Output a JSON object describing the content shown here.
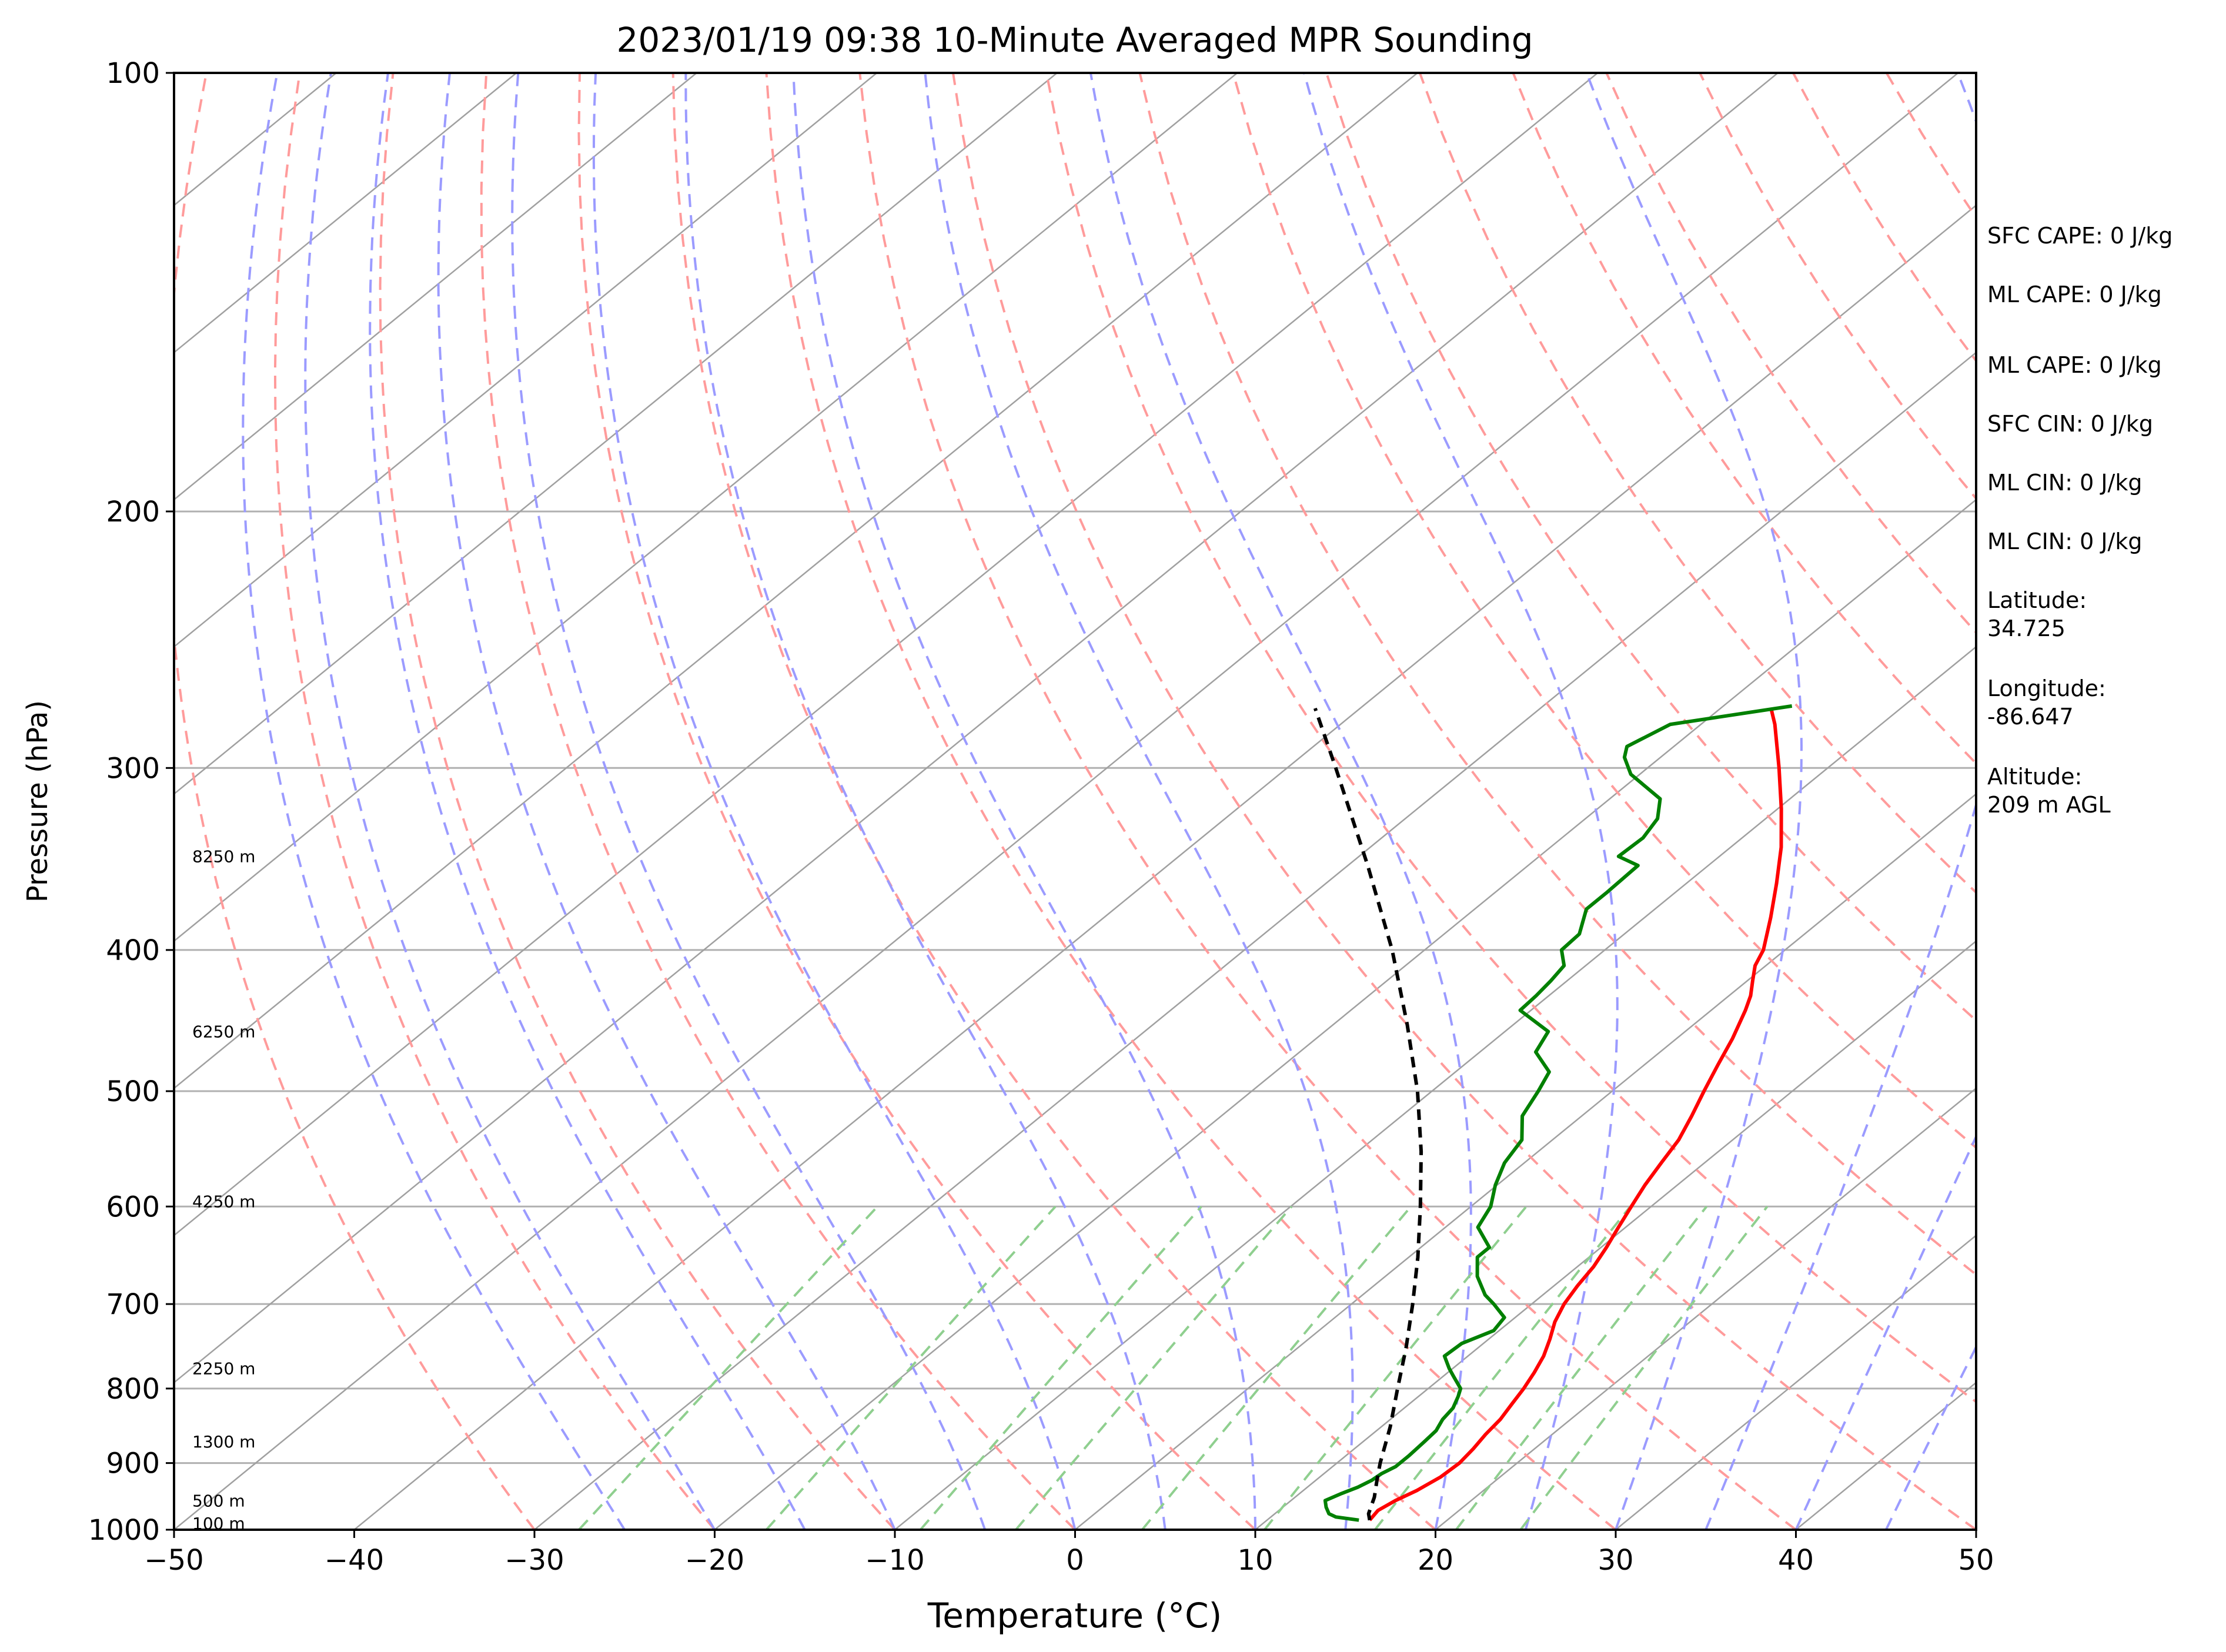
{
  "chart_data": {
    "type": "line",
    "title": "2023/01/19 09:38 10-Minute Averaged MPR Sounding",
    "xlabel": "Temperature (°C)",
    "ylabel": "Pressure (hPa)",
    "xlim": [
      -50,
      50
    ],
    "ylim": [
      1000,
      100
    ],
    "y_scale": "log",
    "skew": true,
    "grid": true,
    "xticks": [
      "−50",
      "−40",
      "−30",
      "−20",
      "−10",
      "0",
      "10",
      "20",
      "30",
      "40",
      "50"
    ],
    "yticks": [
      "100",
      "200",
      "300",
      "400",
      "500",
      "600",
      "700",
      "800",
      "900",
      "1000"
    ],
    "height_labels": [
      {
        "text": "100 m",
        "p": 990
      },
      {
        "text": "500 m",
        "p": 955
      },
      {
        "text": "1300 m",
        "p": 870
      },
      {
        "text": "2250 m",
        "p": 775
      },
      {
        "text": "4250 m",
        "p": 595
      },
      {
        "text": "6250 m",
        "p": 455
      },
      {
        "text": "8250 m",
        "p": 345
      }
    ],
    "series": [
      {
        "color": "#ff0000",
        "points": [
          [
            985,
            15.7
          ],
          [
            970,
            15.5
          ],
          [
            955,
            15.8
          ],
          [
            940,
            16.3
          ],
          [
            920,
            16.7
          ],
          [
            900,
            16.8
          ],
          [
            880,
            16.6
          ],
          [
            860,
            16.3
          ],
          [
            840,
            16.1
          ],
          [
            820,
            15.7
          ],
          [
            800,
            15.3
          ],
          [
            780,
            14.8
          ],
          [
            760,
            14.2
          ],
          [
            740,
            13.4
          ],
          [
            720,
            12.5
          ],
          [
            700,
            11.8
          ],
          [
            680,
            11.3
          ],
          [
            660,
            10.9
          ],
          [
            640,
            10.3
          ],
          [
            620,
            9.6
          ],
          [
            600,
            8.9
          ],
          [
            580,
            8.2
          ],
          [
            560,
            7.6
          ],
          [
            540,
            7.0
          ],
          [
            520,
            6.1
          ],
          [
            500,
            5.1
          ],
          [
            480,
            4.1
          ],
          [
            460,
            3.1
          ],
          [
            440,
            1.9
          ],
          [
            430,
            1.2
          ],
          [
            420,
            0.3
          ],
          [
            410,
            -0.6
          ],
          [
            400,
            -1.2
          ],
          [
            380,
            -3.0
          ],
          [
            360,
            -5.0
          ],
          [
            340,
            -7.2
          ],
          [
            320,
            -9.8
          ],
          [
            300,
            -12.7
          ],
          [
            280,
            -15.9
          ],
          [
            273,
            -17.2
          ]
        ]
      },
      {
        "color": "#008000",
        "points": [
          [
            985,
            15.1
          ],
          [
            980,
            13.6
          ],
          [
            975,
            13.0
          ],
          [
            965,
            12.4
          ],
          [
            955,
            11.9
          ],
          [
            945,
            12.3
          ],
          [
            935,
            12.8
          ],
          [
            925,
            13.1
          ],
          [
            915,
            13.2
          ],
          [
            905,
            13.5
          ],
          [
            890,
            13.5
          ],
          [
            870,
            13.4
          ],
          [
            855,
            13.3
          ],
          [
            840,
            12.9
          ],
          [
            825,
            12.7
          ],
          [
            810,
            12.2
          ],
          [
            800,
            11.8
          ],
          [
            785,
            10.6
          ],
          [
            775,
            9.8
          ],
          [
            760,
            8.7
          ],
          [
            745,
            8.8
          ],
          [
            730,
            9.7
          ],
          [
            715,
            9.4
          ],
          [
            700,
            7.9
          ],
          [
            690,
            6.8
          ],
          [
            670,
            5.1
          ],
          [
            650,
            3.8
          ],
          [
            640,
            3.8
          ],
          [
            620,
            1.8
          ],
          [
            600,
            1.1
          ],
          [
            580,
            -0.1
          ],
          [
            560,
            -1.1
          ],
          [
            540,
            -1.7
          ],
          [
            520,
            -3.3
          ],
          [
            500,
            -4.1
          ],
          [
            485,
            -4.8
          ],
          [
            470,
            -6.9
          ],
          [
            455,
            -7.6
          ],
          [
            440,
            -10.6
          ],
          [
            430,
            -10.7
          ],
          [
            420,
            -10.9
          ],
          [
            410,
            -11.2
          ],
          [
            400,
            -12.4
          ],
          [
            390,
            -12.5
          ],
          [
            375,
            -13.8
          ],
          [
            365,
            -13.8
          ],
          [
            350,
            -13.9
          ],
          [
            345,
            -15.6
          ],
          [
            335,
            -15.5
          ],
          [
            325,
            -16.0
          ],
          [
            315,
            -17.2
          ],
          [
            303,
            -20.5
          ],
          [
            295,
            -22.0
          ],
          [
            290,
            -22.6
          ],
          [
            280,
            -21.7
          ],
          [
            272,
            -16.2
          ]
        ]
      },
      {
        "color": "#000000",
        "dashed": true,
        "points": [
          [
            985,
            15.7
          ],
          [
            975,
            15.2
          ],
          [
            950,
            14.4
          ],
          [
            925,
            13.4
          ],
          [
            900,
            12.4
          ],
          [
            850,
            10.5
          ],
          [
            800,
            8.3
          ],
          [
            750,
            6.0
          ],
          [
            700,
            3.4
          ],
          [
            650,
            0.5
          ],
          [
            600,
            -2.8
          ],
          [
            550,
            -6.5
          ],
          [
            500,
            -10.8
          ],
          [
            450,
            -15.9
          ],
          [
            400,
            -21.8
          ],
          [
            350,
            -28.9
          ],
          [
            300,
            -37.3
          ],
          [
            273,
            -42.5
          ]
        ]
      }
    ]
  },
  "stats": [
    {
      "label": "SFC CAPE: 0 J/kg"
    },
    {
      "label": "ML CAPE: 0 J/kg"
    },
    {
      "label": "ML CAPE: 0 J/kg"
    },
    {
      "label": "SFC CIN: 0 J/kg"
    },
    {
      "label": "ML CIN: 0 J/kg"
    },
    {
      "label": "ML CIN: 0 J/kg"
    },
    {
      "label": "Latitude:",
      "value": "34.725"
    },
    {
      "label": "Longitude:",
      "value": "-86.647"
    },
    {
      "label": "Altitude:",
      "value": "209 m AGL"
    }
  ],
  "colors": {
    "isobar": "#b0b0b0",
    "isotherm": "#a0a0a0",
    "dry_adiabat": "#ff9b9b",
    "moist_adiabat": "#9b9bff",
    "mixing_ratio": "#8fcf8f"
  }
}
